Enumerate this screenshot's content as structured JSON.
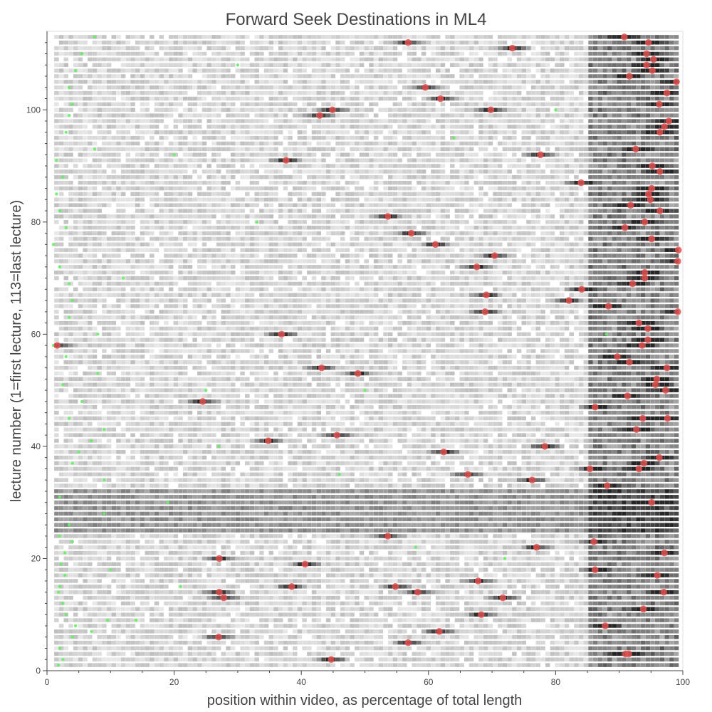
{
  "chart_data": {
    "type": "heatmap",
    "title": "Forward Seek Destinations in ML4",
    "xlabel": "position within video, as percentage of total length",
    "ylabel": "lecture number (1=first lecture, 113=last lecture)",
    "xlim": [
      0,
      100
    ],
    "ylim": [
      0,
      114
    ],
    "x_ticks": [
      0,
      20,
      40,
      60,
      80,
      100
    ],
    "y_ticks": [
      0,
      20,
      40,
      60,
      80,
      100
    ],
    "grid": false,
    "colors": {
      "heat": "#000000",
      "peak_marker": "#e05050",
      "start_marker": "#66ee66",
      "text": "#444444",
      "axis": "#444444"
    },
    "series": [
      {
        "type": "scatter",
        "points": [
          [
            44.7,
            2
          ],
          [
            91.5,
            3
          ],
          [
            91,
            3
          ],
          [
            56.8,
            5
          ],
          [
            27,
            6
          ],
          [
            61.7,
            7
          ],
          [
            87.8,
            8
          ],
          [
            68.3,
            10
          ],
          [
            93.8,
            11
          ],
          [
            71.7,
            13
          ],
          [
            27.8,
            13
          ],
          [
            58.3,
            14
          ],
          [
            27.1,
            14
          ],
          [
            97,
            14
          ],
          [
            38.5,
            15
          ],
          [
            54.8,
            15
          ],
          [
            67.8,
            16
          ],
          [
            96,
            17
          ],
          [
            86.2,
            18
          ],
          [
            40.6,
            19
          ],
          [
            27.1,
            20
          ],
          [
            97.1,
            21
          ],
          [
            77,
            22
          ],
          [
            86,
            23
          ],
          [
            53.6,
            24
          ],
          [
            95.1,
            30
          ],
          [
            88.1,
            33
          ],
          [
            76.3,
            34
          ],
          [
            66.2,
            35
          ],
          [
            85.4,
            36
          ],
          [
            93.1,
            36
          ],
          [
            93.9,
            37
          ],
          [
            96.3,
            38
          ],
          [
            78.3,
            40
          ],
          [
            62.4,
            39
          ],
          [
            34.8,
            41
          ],
          [
            45.6,
            42
          ],
          [
            92.7,
            43
          ],
          [
            97.6,
            45
          ],
          [
            93.7,
            45
          ],
          [
            86.2,
            47
          ],
          [
            24.5,
            48
          ],
          [
            91.3,
            49
          ],
          [
            97.3,
            50
          ],
          [
            95.7,
            51
          ],
          [
            95.9,
            52
          ],
          [
            48.9,
            53
          ],
          [
            43.2,
            54
          ],
          [
            97.5,
            54
          ],
          [
            91.6,
            55
          ],
          [
            89.7,
            56
          ],
          [
            93.6,
            58
          ],
          [
            94.5,
            59
          ],
          [
            36.9,
            60
          ],
          [
            94.5,
            61
          ],
          [
            93.1,
            62
          ],
          [
            68.9,
            64
          ],
          [
            99.2,
            64
          ],
          [
            88.3,
            65
          ],
          [
            82.1,
            66
          ],
          [
            69.1,
            67
          ],
          [
            84.1,
            68
          ],
          [
            92.1,
            69
          ],
          [
            94,
            70
          ],
          [
            94,
            71
          ],
          [
            67.6,
            72
          ],
          [
            99.2,
            73
          ],
          [
            70.4,
            74
          ],
          [
            99.3,
            75
          ],
          [
            61.1,
            76
          ],
          [
            57.3,
            78
          ],
          [
            95.1,
            77
          ],
          [
            90.9,
            79
          ],
          [
            94,
            80
          ],
          [
            53.6,
            81
          ],
          [
            96.4,
            82
          ],
          [
            91.8,
            83
          ],
          [
            94.9,
            84
          ],
          [
            94.6,
            85
          ],
          [
            95.1,
            86
          ],
          [
            84,
            87
          ],
          [
            96.4,
            89
          ],
          [
            95.2,
            90
          ],
          [
            77.6,
            92
          ],
          [
            37.6,
            91
          ],
          [
            92.6,
            93
          ],
          [
            96.4,
            96
          ],
          [
            97.1,
            97
          ],
          [
            97.8,
            98
          ],
          [
            1.6,
            58
          ],
          [
            42.9,
            99
          ],
          [
            44.9,
            100
          ],
          [
            69.8,
            100
          ],
          [
            96.3,
            101
          ],
          [
            61.9,
            102
          ],
          [
            97.5,
            103
          ],
          [
            59.5,
            104
          ],
          [
            99,
            105
          ],
          [
            91.6,
            106
          ],
          [
            95.2,
            107
          ],
          [
            94.3,
            108
          ],
          [
            95.4,
            109
          ],
          [
            94.3,
            110
          ],
          [
            73.2,
            111
          ],
          [
            56.8,
            112
          ],
          [
            94.6,
            112
          ],
          [
            90.8,
            113
          ]
        ]
      },
      {
        "type": "scatter",
        "points": [
          [
            1.8,
            1
          ],
          [
            2.5,
            2
          ],
          [
            2.0,
            4
          ],
          [
            4.0,
            6
          ],
          [
            7.0,
            7
          ],
          [
            4.5,
            8
          ],
          [
            9.5,
            9
          ],
          [
            3.0,
            10
          ],
          [
            2.5,
            12
          ],
          [
            1.8,
            14
          ],
          [
            2.0,
            15
          ],
          [
            2.8,
            17
          ],
          [
            2.2,
            19
          ],
          [
            2.8,
            21
          ],
          [
            4.0,
            23
          ],
          [
            2.0,
            24
          ],
          [
            3.5,
            26
          ],
          [
            9.0,
            28
          ],
          [
            2.0,
            31
          ],
          [
            9.0,
            34
          ],
          [
            4.0,
            37
          ],
          [
            5.0,
            39
          ],
          [
            7.0,
            41
          ],
          [
            9.0,
            43
          ],
          [
            3.5,
            45
          ],
          [
            5.5,
            48
          ],
          [
            2.5,
            51
          ],
          [
            8.0,
            53
          ],
          [
            3.0,
            56
          ],
          [
            1.0,
            58
          ],
          [
            8.0,
            60
          ],
          [
            3.5,
            63
          ],
          [
            4.0,
            66
          ],
          [
            3.5,
            69
          ],
          [
            2.0,
            72
          ],
          [
            1.0,
            76
          ],
          [
            3.0,
            79
          ],
          [
            2.0,
            82
          ],
          [
            1.5,
            85
          ],
          [
            2.5,
            88
          ],
          [
            1.5,
            91
          ],
          [
            7.5,
            93
          ],
          [
            3.0,
            96
          ],
          [
            3.5,
            99
          ],
          [
            4.0,
            101
          ],
          [
            3.5,
            104
          ],
          [
            4.5,
            107
          ],
          [
            5.5,
            110
          ],
          [
            7.5,
            113
          ],
          [
            14.0,
            9
          ],
          [
            21.0,
            15
          ],
          [
            19.0,
            30
          ],
          [
            25.0,
            50
          ],
          [
            12.0,
            70
          ],
          [
            20.0,
            92
          ],
          [
            30.0,
            108
          ],
          [
            46.0,
            35
          ],
          [
            58.0,
            22
          ],
          [
            64.0,
            95
          ],
          [
            72.0,
            20
          ],
          [
            80.0,
            100
          ],
          [
            88.0,
            60
          ],
          [
            50.0,
            50
          ],
          [
            33.0,
            80
          ],
          [
            27.0,
            40
          ],
          [
            10.0,
            18
          ]
        ]
      }
    ]
  }
}
